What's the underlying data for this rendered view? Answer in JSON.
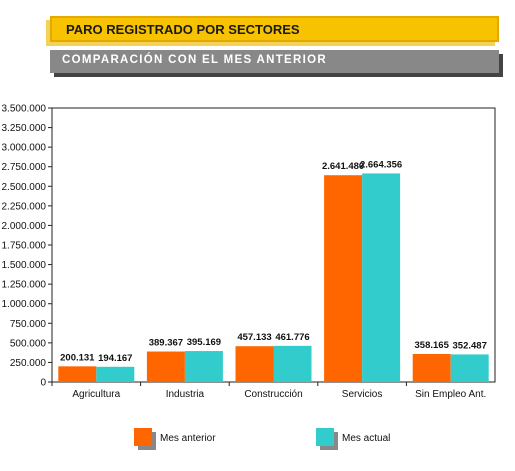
{
  "header": {
    "title": "PARO REGISTRADO POR SECTORES",
    "subtitle": "COMPARACIÓN CON EL MES ANTERIOR"
  },
  "colors": {
    "mes_anterior": "#ff6600",
    "mes_actual": "#33cccc",
    "banner": "#f7c300",
    "subbanner": "#888888"
  },
  "chart_data": {
    "type": "bar",
    "title": "",
    "xlabel": "",
    "ylabel": "",
    "categories": [
      "Agricultura",
      "Industria",
      "Construcción",
      "Servicios",
      "Sin Empleo Ant."
    ],
    "series": [
      {
        "name": "Mes anterior",
        "values": [
          200131,
          389367,
          457133,
          2641480,
          358165
        ],
        "labels": [
          "200.131",
          "389.367",
          "457.133",
          "2.641.480",
          "358.165"
        ]
      },
      {
        "name": "Mes actual",
        "values": [
          194167,
          395169,
          461776,
          2664356,
          352487
        ],
        "labels": [
          "194.167",
          "395.169",
          "461.776",
          "2.664.356",
          "352.487"
        ]
      }
    ],
    "ylim": [
      0,
      3500000
    ],
    "yticks": [
      0,
      250000,
      500000,
      750000,
      1000000,
      1250000,
      1500000,
      1750000,
      2000000,
      2250000,
      2500000,
      2750000,
      3000000,
      3250000,
      3500000
    ],
    "ytick_labels": [
      "0",
      "250.000",
      "500.000",
      "750.000",
      "1.000.000",
      "1.250.000",
      "1.500.000",
      "1.750.000",
      "2.000.000",
      "2.250.000",
      "2.500.000",
      "2.750.000",
      "3.000.000",
      "3.250.000",
      "3.500.000"
    ],
    "grid": false,
    "legend": "bottom"
  }
}
